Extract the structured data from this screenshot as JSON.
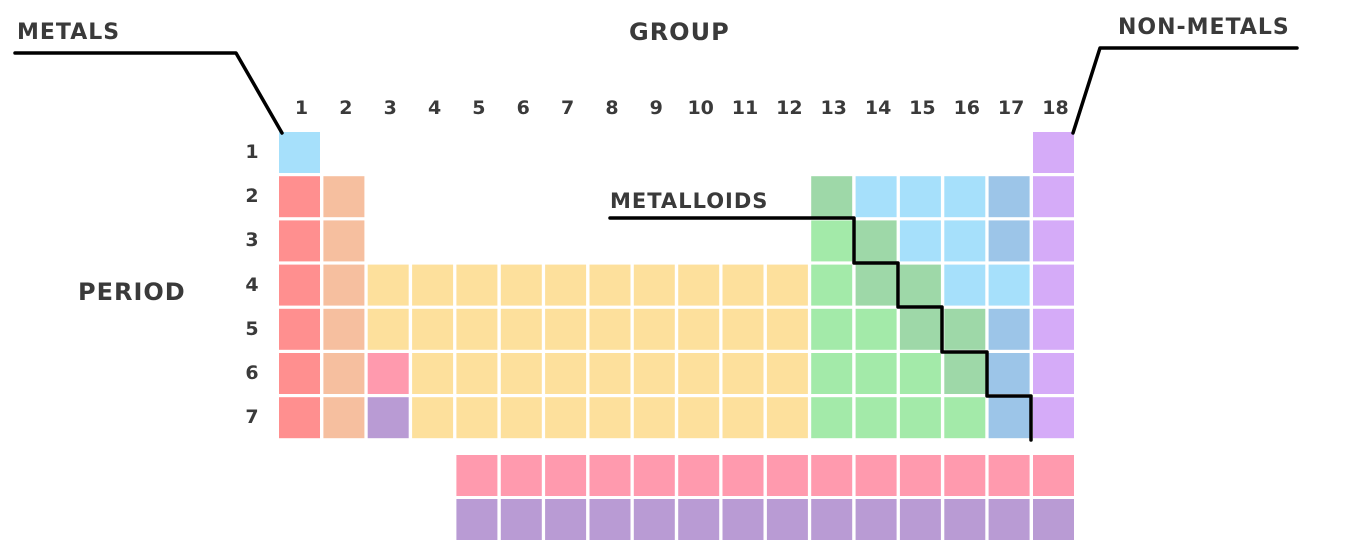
{
  "labels": {
    "group": "GROUP",
    "period": "PERIOD",
    "metals": "METALS",
    "non_metals": "NON-METALS",
    "metalloids": "METALLOIDS"
  },
  "group_numbers": [
    "1",
    "2",
    "3",
    "4",
    "5",
    "6",
    "7",
    "8",
    "9",
    "10",
    "11",
    "12",
    "13",
    "14",
    "15",
    "16",
    "17",
    "18"
  ],
  "period_numbers": [
    "1",
    "2",
    "3",
    "4",
    "5",
    "6",
    "7"
  ],
  "colors": {
    "alkali": "#ff8f8f",
    "alkaline_earth": "#f6bf9f",
    "transition": "#fde09c",
    "lanthanide": "#ff9aae",
    "actinide": "#b99bd4",
    "post_transition": "#a3eaa9",
    "metalloid": "#9ed8a8",
    "nonmetal": "#a6e0fb",
    "halogen": "#9cc5e8",
    "noble_gas": "#d5abf8",
    "staircase": "#000000",
    "pointer": "#000000"
  }
}
